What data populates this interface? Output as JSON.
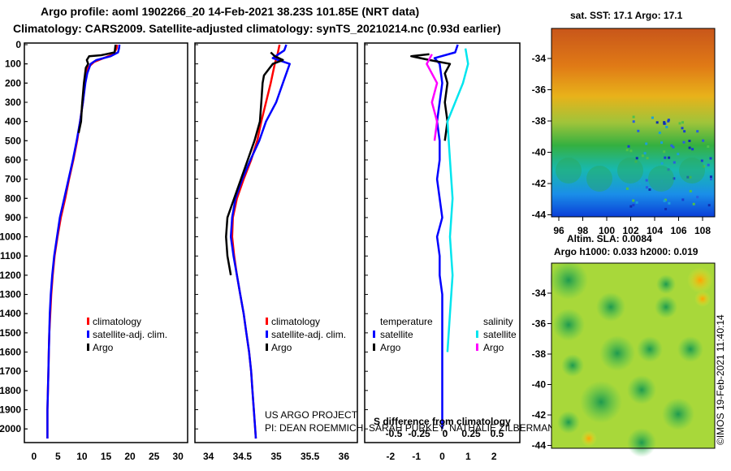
{
  "header": {
    "title_line1": "Argo profile: aoml 1902266_20 14-Feb-2021 38.23S 101.85E (NRT data)",
    "title_line2": "Climatology: CARS2009. Satellite-adjusted climatology: synTS_20210214.nc (0.93d earlier)"
  },
  "colors": {
    "climatology": "#ff0000",
    "satellite": "#0000ff",
    "argo": "#000000",
    "salinity_satellite": "#00e5ee",
    "salinity_argo": "#ff00ff"
  },
  "chart_data": [
    {
      "type": "line",
      "name": "temperature profile",
      "xlim": [
        -2,
        32
      ],
      "xticks": [
        0,
        5,
        10,
        15,
        20,
        25,
        30
      ],
      "ylim": [
        0,
        2050
      ],
      "yticks": [
        0,
        100,
        200,
        300,
        400,
        500,
        600,
        700,
        800,
        900,
        1000,
        1100,
        1200,
        1300,
        1400,
        1500,
        1600,
        1700,
        1800,
        1900,
        2000
      ],
      "legend": {
        "items": [
          "climatology",
          "satellite-adj. clim.",
          "Argo"
        ]
      },
      "series": [
        {
          "name": "climatology",
          "color": "#ff0000",
          "points": [
            [
              17.3,
              0
            ],
            [
              17.2,
              20
            ],
            [
              16.5,
              50
            ],
            [
              14.5,
              70
            ],
            [
              12.5,
              90
            ],
            [
              11.2,
              120
            ],
            [
              10.6,
              200
            ],
            [
              10.2,
              300
            ],
            [
              9.6,
              400
            ],
            [
              9.0,
              500
            ],
            [
              8.2,
              600
            ],
            [
              7.3,
              700
            ],
            [
              6.5,
              800
            ],
            [
              5.6,
              900
            ],
            [
              4.9,
              1000
            ],
            [
              4.3,
              1100
            ],
            [
              3.9,
              1200
            ],
            [
              3.6,
              1300
            ],
            [
              3.4,
              1400
            ],
            [
              3.2,
              1500
            ],
            [
              3.1,
              1600
            ],
            [
              3.0,
              1700
            ],
            [
              2.9,
              1800
            ],
            [
              2.8,
              1900
            ],
            [
              2.8,
              2000
            ],
            [
              2.8,
              2050
            ]
          ]
        },
        {
          "name": "satellite-adj. clim.",
          "color": "#0000ff",
          "points": [
            [
              17.8,
              0
            ],
            [
              17.7,
              20
            ],
            [
              17.5,
              40
            ],
            [
              16.0,
              60
            ],
            [
              13.0,
              80
            ],
            [
              11.8,
              100
            ],
            [
              11.1,
              150
            ],
            [
              10.7,
              200
            ],
            [
              10.2,
              300
            ],
            [
              9.6,
              400
            ],
            [
              8.9,
              500
            ],
            [
              8.1,
              600
            ],
            [
              7.2,
              700
            ],
            [
              6.3,
              800
            ],
            [
              5.4,
              900
            ],
            [
              4.8,
              1000
            ],
            [
              4.2,
              1100
            ],
            [
              3.8,
              1200
            ],
            [
              3.5,
              1300
            ],
            [
              3.3,
              1400
            ],
            [
              3.2,
              1500
            ],
            [
              3.1,
              1600
            ],
            [
              3.0,
              1700
            ],
            [
              2.9,
              1800
            ],
            [
              2.8,
              1900
            ],
            [
              2.8,
              2000
            ],
            [
              2.8,
              2050
            ]
          ]
        },
        {
          "name": "Argo",
          "color": "#000000",
          "points": [
            [
              17.0,
              0
            ],
            [
              16.9,
              20
            ],
            [
              16.8,
              40
            ],
            [
              14.0,
              55
            ],
            [
              11.5,
              60
            ],
            [
              11.0,
              80
            ],
            [
              11.3,
              100
            ],
            [
              10.8,
              120
            ],
            [
              10.6,
              160
            ],
            [
              10.4,
              200
            ],
            [
              10.2,
              260
            ],
            [
              10.0,
              320
            ],
            [
              9.8,
              400
            ],
            [
              9.3,
              460
            ]
          ]
        }
      ]
    },
    {
      "type": "line",
      "name": "salinity profile",
      "xlim": [
        33.8,
        36.2
      ],
      "xticks": [
        34,
        34.5,
        35,
        35.5,
        36
      ],
      "ylim": [
        0,
        2050
      ],
      "legend": {
        "items": [
          "climatology",
          "satellite-adj. clim.",
          "Argo"
        ]
      },
      "series": [
        {
          "name": "climatology",
          "color": "#ff0000",
          "points": [
            [
              35.05,
              0
            ],
            [
              35.02,
              50
            ],
            [
              34.98,
              100
            ],
            [
              34.92,
              200
            ],
            [
              34.85,
              300
            ],
            [
              34.78,
              400
            ],
            [
              34.72,
              500
            ],
            [
              34.63,
              600
            ],
            [
              34.52,
              700
            ],
            [
              34.42,
              800
            ],
            [
              34.36,
              900
            ],
            [
              34.35,
              1000
            ],
            [
              34.38,
              1100
            ],
            [
              34.42,
              1200
            ],
            [
              34.47,
              1300
            ],
            [
              34.52,
              1400
            ],
            [
              34.56,
              1500
            ],
            [
              34.6,
              1600
            ],
            [
              34.63,
              1700
            ],
            [
              34.65,
              1800
            ],
            [
              34.67,
              1900
            ],
            [
              34.69,
              2000
            ],
            [
              34.7,
              2050
            ]
          ]
        },
        {
          "name": "satellite-adj. clim.",
          "color": "#0000ff",
          "points": [
            [
              35.15,
              0
            ],
            [
              35.12,
              30
            ],
            [
              34.95,
              70
            ],
            [
              35.2,
              100
            ],
            [
              35.1,
              200
            ],
            [
              35.0,
              300
            ],
            [
              34.85,
              400
            ],
            [
              34.75,
              500
            ],
            [
              34.62,
              600
            ],
            [
              34.5,
              700
            ],
            [
              34.4,
              800
            ],
            [
              34.35,
              900
            ],
            [
              34.33,
              1000
            ],
            [
              34.37,
              1100
            ],
            [
              34.42,
              1200
            ],
            [
              34.47,
              1300
            ],
            [
              34.52,
              1400
            ],
            [
              34.56,
              1500
            ],
            [
              34.6,
              1600
            ],
            [
              34.63,
              1700
            ],
            [
              34.65,
              1800
            ],
            [
              34.67,
              1900
            ],
            [
              34.69,
              2000
            ],
            [
              34.7,
              2050
            ]
          ]
        },
        {
          "name": "Argo",
          "color": "#000000",
          "points": [
            [
              34.92,
              40
            ],
            [
              34.98,
              60
            ],
            [
              35.1,
              80
            ],
            [
              34.95,
              100
            ],
            [
              34.82,
              160
            ],
            [
              34.8,
              200
            ],
            [
              34.78,
              300
            ],
            [
              34.76,
              400
            ],
            [
              34.68,
              500
            ],
            [
              34.58,
              600
            ],
            [
              34.48,
              700
            ],
            [
              34.38,
              800
            ],
            [
              34.28,
              900
            ],
            [
              34.26,
              1000
            ],
            [
              34.28,
              1100
            ],
            [
              34.33,
              1200
            ]
          ]
        }
      ]
    },
    {
      "type": "line",
      "name": "difference from climatology",
      "xlabel": "S difference from climatology",
      "xlim": [
        -3,
        3
      ],
      "xticks": [
        -2,
        -1,
        0,
        1,
        2
      ],
      "xticks_secondary": [
        -0.5,
        -0.25,
        0,
        0.25,
        0.5
      ],
      "ylim": [
        0,
        2050
      ],
      "legend": {
        "headers": [
          "temperature",
          "salinity"
        ],
        "items": [
          "satellite",
          "Argo",
          "satellite",
          "Argo"
        ]
      },
      "series": [
        {
          "name": "temperature satellite",
          "color": "#0000ff",
          "points": [
            [
              0.6,
              0
            ],
            [
              0.5,
              40
            ],
            [
              -0.3,
              70
            ],
            [
              -0.1,
              100
            ],
            [
              0,
              200
            ],
            [
              -0.1,
              300
            ],
            [
              -0.2,
              400
            ],
            [
              -0.1,
              500
            ],
            [
              -0.1,
              600
            ],
            [
              -0.2,
              700
            ],
            [
              -0.1,
              800
            ],
            [
              0,
              900
            ],
            [
              -0.2,
              1000
            ],
            [
              -0.1,
              1100
            ],
            [
              -0.1,
              1200
            ],
            [
              0,
              1300
            ],
            [
              0,
              1400
            ],
            [
              0,
              1500
            ],
            [
              0,
              1600
            ],
            [
              0,
              1700
            ],
            [
              0,
              1800
            ],
            [
              0,
              1900
            ],
            [
              0,
              2000
            ]
          ]
        },
        {
          "name": "temperature Argo",
          "color": "#000000",
          "points": [
            [
              -0.5,
              50
            ],
            [
              -1.2,
              60
            ],
            [
              -0.5,
              80
            ],
            [
              0.3,
              100
            ],
            [
              0.1,
              150
            ],
            [
              0.2,
              200
            ],
            [
              0.1,
              300
            ],
            [
              0.2,
              400
            ],
            [
              0.1,
              500
            ]
          ]
        },
        {
          "name": "salinity satellite",
          "color": "#00e5ee",
          "points": [
            [
              0.9,
              20
            ],
            [
              1.0,
              100
            ],
            [
              0.8,
              200
            ],
            [
              0.2,
              400
            ],
            [
              0.3,
              600
            ],
            [
              0.4,
              800
            ],
            [
              0.3,
              1000
            ],
            [
              0.4,
              1200
            ],
            [
              0.3,
              1400
            ],
            [
              0.2,
              1600
            ]
          ]
        },
        {
          "name": "salinity Argo",
          "color": "#ff00ff",
          "points": [
            [
              -0.4,
              50
            ],
            [
              -0.6,
              100
            ],
            [
              -0.2,
              200
            ],
            [
              -0.4,
              300
            ],
            [
              -0.2,
              400
            ],
            [
              -0.3,
              500
            ]
          ]
        }
      ]
    },
    {
      "type": "heatmap",
      "name": "satellite SST map",
      "title": "sat. SST: 17.1 Argo: 17.1",
      "xticks": [
        96,
        98,
        100,
        102,
        104,
        106,
        108
      ],
      "yticks": [
        -34,
        -36,
        -38,
        -40,
        -42,
        -44
      ]
    },
    {
      "type": "heatmap",
      "name": "altimetry SLA map",
      "title_line1": "Altim. SLA: 0.0084",
      "title_line2": "Argo h1000: 0.033 h2000: 0.019",
      "yticks": [
        -34,
        -36,
        -38,
        -40,
        -42,
        -44
      ]
    }
  ],
  "credits": {
    "line1": "US ARGO PROJECT",
    "line2": "PI: DEAN ROEMMICH, SARAH PURKEY, NATHALIE ZILBERMAN, JOHN GILSON",
    "imos": "©IMOS 19-Feb-2021 11:40:14"
  }
}
